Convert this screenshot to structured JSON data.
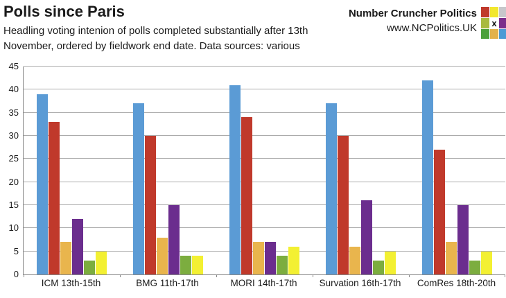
{
  "header": {
    "title": "Polls since Paris",
    "subtitle_line1": "Headling voting intenion of polls completed substantially after 13th",
    "subtitle_line2": "November, ordered by fieldwork end date. Data sources: various",
    "brand_name": "Number Cruncher Politics",
    "brand_url": "www.NCPolitics.UK",
    "logo": {
      "center_mark": "x",
      "cell_colors": [
        "#C0392B",
        "#F2E72E",
        "#C7C7CB",
        "#A9BA3E",
        "#FFFFFF",
        "#7B2D8B",
        "#4BA13B",
        "#E2B24B",
        "#4D9BD5"
      ]
    }
  },
  "chart_data": {
    "type": "bar",
    "title": "Polls since Paris",
    "subtitle": "Headling voting intenion of polls completed substantially after 13th November, ordered by fieldwork end date. Data sources: various",
    "categories": [
      "ICM 13th-15th",
      "BMG 11th-17th",
      "MORI 14th-17th",
      "Survation 16th-17th",
      "ComRes 18th-20th"
    ],
    "series": [
      {
        "name": "blue",
        "color": "#5B9BD5",
        "values": [
          39,
          37,
          41,
          37,
          42
        ]
      },
      {
        "name": "red",
        "color": "#C0392B",
        "values": [
          33,
          30,
          34,
          30,
          27
        ]
      },
      {
        "name": "gold",
        "color": "#E9B54D",
        "values": [
          7,
          8,
          7,
          6,
          7
        ]
      },
      {
        "name": "purple",
        "color": "#6B2D8E",
        "values": [
          12,
          15,
          7,
          16,
          15
        ]
      },
      {
        "name": "green",
        "color": "#7CAD3F",
        "values": [
          3,
          4,
          4,
          3,
          3
        ]
      },
      {
        "name": "yellow",
        "color": "#F3F032",
        "values": [
          5,
          4,
          6,
          5,
          5
        ]
      }
    ],
    "ylim": [
      0,
      45
    ],
    "ytick_step": 5,
    "grid": true,
    "legend": "none",
    "xlabel": "",
    "ylabel": ""
  }
}
